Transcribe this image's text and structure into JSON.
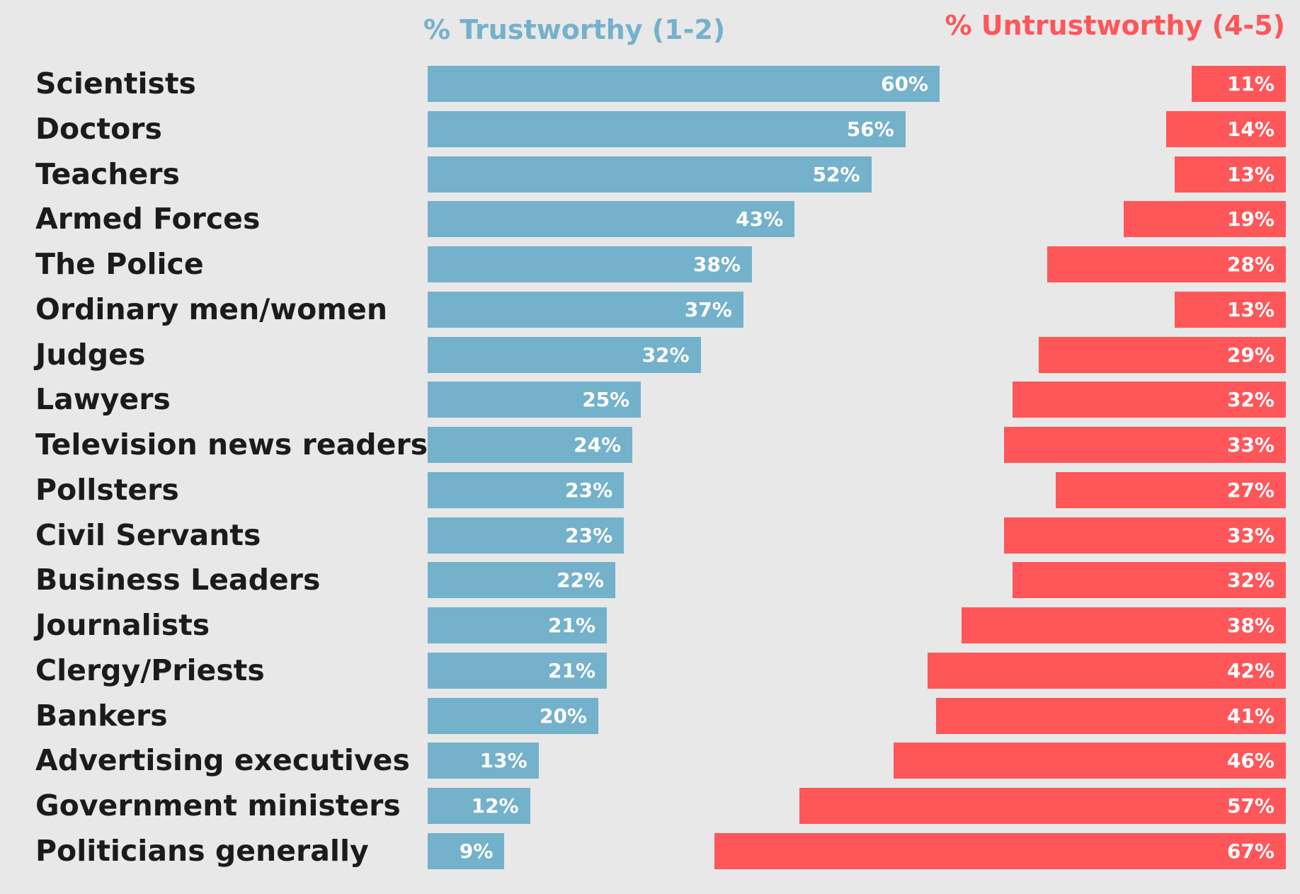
{
  "chart_data": {
    "type": "bar",
    "categories": [
      "Scientists",
      "Doctors",
      "Teachers",
      "Armed Forces",
      "The Police",
      "Ordinary men/women",
      "Judges",
      "Lawyers",
      "Television news readers",
      "Pollsters",
      "Civil Servants",
      "Business Leaders",
      "Journalists",
      "Clergy/Priests",
      "Bankers",
      "Advertising executives",
      "Government ministers",
      "Politicians generally"
    ],
    "series": [
      {
        "name": "% Trustworthy (1-2)",
        "color": "#74b1cb",
        "values": [
          60,
          56,
          52,
          43,
          38,
          37,
          32,
          25,
          24,
          23,
          23,
          22,
          21,
          21,
          20,
          13,
          12,
          9
        ]
      },
      {
        "name": "% Untrustworthy (4-5)",
        "color": "#fe5659",
        "values": [
          11,
          14,
          13,
          19,
          28,
          13,
          29,
          32,
          33,
          27,
          33,
          32,
          38,
          42,
          41,
          46,
          57,
          67
        ]
      }
    ],
    "value_suffix": "%",
    "xlim": [
      0,
      100
    ],
    "grid": false
  }
}
